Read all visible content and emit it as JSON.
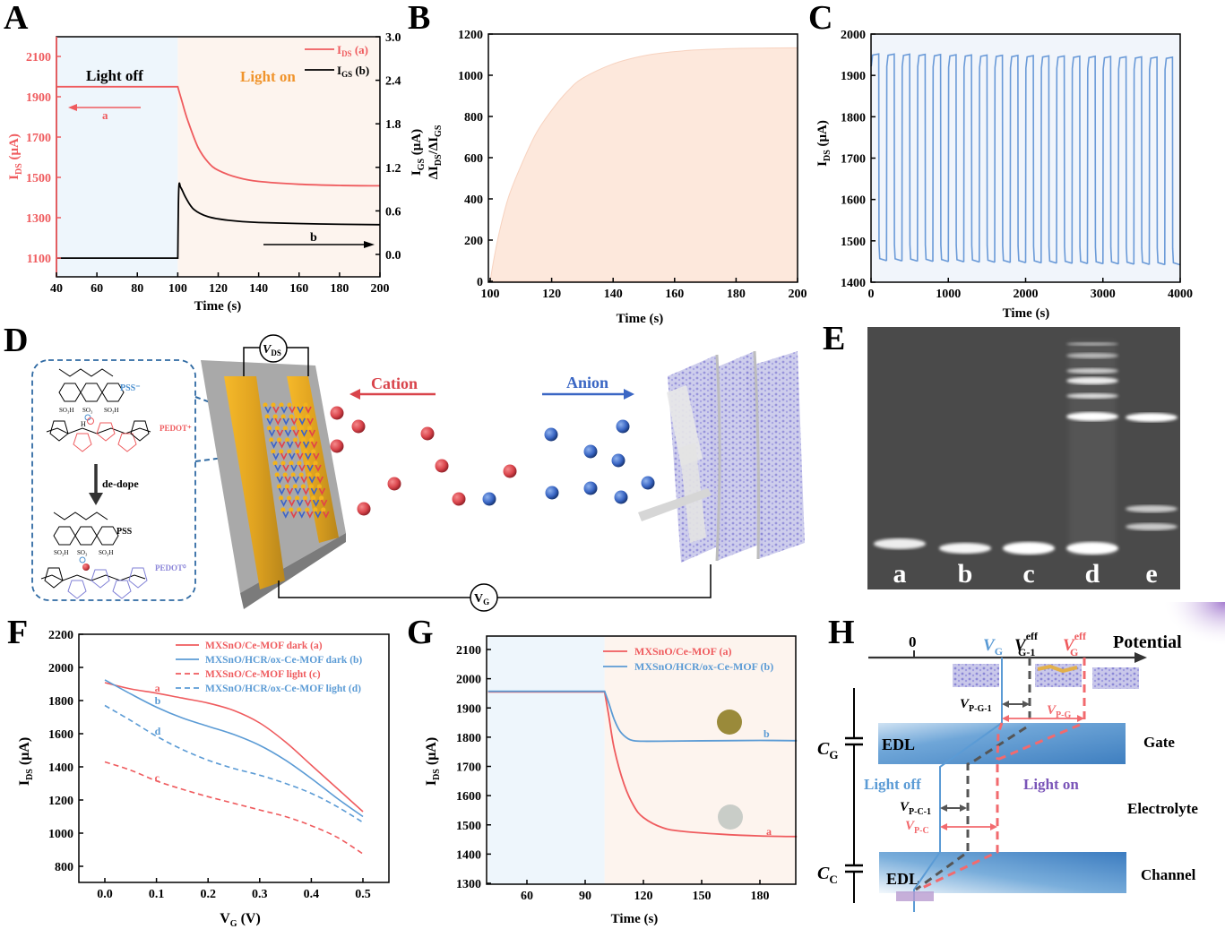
{
  "panels": {
    "A": {
      "letter": "A"
    },
    "B": {
      "letter": "B"
    },
    "C": {
      "letter": "C"
    },
    "D": {
      "letter": "D"
    },
    "E": {
      "letter": "E"
    },
    "F": {
      "letter": "F"
    },
    "G": {
      "letter": "G"
    },
    "H": {
      "letter": "H"
    }
  },
  "chart_data": [
    {
      "id": "A",
      "type": "line",
      "title": "",
      "xlabel": "Time (s)",
      "ylabel_left": "IDS (μA)",
      "ylabel_right": "IGS (μA)",
      "xlim": [
        40,
        200
      ],
      "ylim_left": [
        1000,
        2200
      ],
      "ylim_right": [
        -0.3,
        3.0
      ],
      "xticks": [
        "40",
        "60",
        "80",
        "100",
        "120",
        "140",
        "160",
        "180",
        "200"
      ],
      "yticks_left": [
        "1100",
        "1300",
        "1500",
        "1700",
        "1900",
        "2100"
      ],
      "yticks_right": [
        "0.0",
        "0.6",
        "1.2",
        "1.8",
        "2.4",
        "3.0"
      ],
      "regions": [
        {
          "label": "Light off",
          "from": 40,
          "to": 100,
          "color": "#eef6fc"
        },
        {
          "label": "Light on",
          "from": 100,
          "to": 200,
          "color": "#fdf4ee"
        }
      ],
      "series": [
        {
          "name": "IDS (a)",
          "axis": "left",
          "color": "#ef5b5e",
          "x": [
            40,
            100,
            102,
            105,
            110,
            115,
            120,
            130,
            140,
            160,
            180,
            200
          ],
          "y": [
            1950,
            1950,
            1880,
            1780,
            1650,
            1575,
            1535,
            1498,
            1480,
            1466,
            1460,
            1458
          ]
        },
        {
          "name": "IGS (b)",
          "axis": "right",
          "color": "#000000",
          "x": [
            40,
            100,
            100.5,
            101.5,
            104,
            108,
            115,
            125,
            140,
            170,
            200
          ],
          "y": [
            -0.05,
            -0.05,
            0.9,
            0.92,
            0.78,
            0.62,
            0.52,
            0.47,
            0.44,
            0.42,
            0.41
          ]
        }
      ],
      "annotations": [
        {
          "text": "a",
          "arrow": "left",
          "color": "#ef5b5e"
        },
        {
          "text": "b",
          "arrow": "right",
          "color": "#000000"
        }
      ],
      "legend": "top-right"
    },
    {
      "id": "B",
      "type": "area",
      "title": "",
      "xlabel": "Time (s)",
      "ylabel": "ΔIDS/ΔIGS",
      "xlim": [
        100,
        200
      ],
      "ylim": [
        0,
        1200
      ],
      "xticks": [
        "100",
        "120",
        "140",
        "160",
        "180",
        "200"
      ],
      "yticks": [
        "0",
        "200",
        "400",
        "600",
        "800",
        "1000",
        "1200"
      ],
      "series": [
        {
          "name": "ΔIDS/ΔIGS",
          "color": "#fde8dc",
          "x": [
            100,
            101,
            103,
            106,
            110,
            115,
            120,
            125,
            130,
            140,
            150,
            160,
            170,
            180,
            190,
            200
          ],
          "y": [
            0,
            90,
            240,
            410,
            560,
            720,
            830,
            920,
            985,
            1055,
            1095,
            1115,
            1125,
            1130,
            1132,
            1133
          ]
        }
      ]
    },
    {
      "id": "C",
      "type": "line",
      "title": "",
      "xlabel": "Time (s)",
      "ylabel": "IDS (μA)",
      "xlim": [
        0,
        4000
      ],
      "ylim": [
        1400,
        2000
      ],
      "xticks": [
        "0",
        "1000",
        "2000",
        "3000",
        "4000"
      ],
      "yticks": [
        "1400",
        "1500",
        "1600",
        "1700",
        "1800",
        "1900",
        "2000"
      ],
      "series": [
        {
          "name": "IDS",
          "color": "#6a9ad8",
          "cycles": 20,
          "period_s": 200,
          "high_start": 1952,
          "high_end": 1944,
          "low_start": 1452,
          "low_end": 1442
        }
      ]
    },
    {
      "id": "F",
      "type": "line",
      "title": "",
      "xlabel": "VG (V)",
      "ylabel": "IDS (μA)",
      "xlim": [
        -0.05,
        0.55
      ],
      "ylim": [
        700,
        2200
      ],
      "xticks": [
        "0.0",
        "0.1",
        "0.2",
        "0.3",
        "0.4",
        "0.5"
      ],
      "yticks": [
        "800",
        "1000",
        "1200",
        "1400",
        "1600",
        "1800",
        "2000",
        "2200"
      ],
      "legend": "top-right",
      "series": [
        {
          "name": "MXSnO/Ce-MOF dark (a)",
          "tag": "a",
          "color": "#ef5b5e",
          "dash": false,
          "x": [
            0.0,
            0.05,
            0.1,
            0.15,
            0.2,
            0.25,
            0.3,
            0.35,
            0.4,
            0.45,
            0.5
          ],
          "y": [
            1908,
            1870,
            1845,
            1815,
            1785,
            1740,
            1665,
            1550,
            1410,
            1270,
            1130
          ]
        },
        {
          "name": "MXSnO/HCR/ox-Ce-MOF  dark (b)",
          "tag": "b",
          "color": "#5b9bd5",
          "dash": false,
          "x": [
            0.0,
            0.05,
            0.1,
            0.15,
            0.2,
            0.25,
            0.3,
            0.35,
            0.4,
            0.45,
            0.5
          ],
          "y": [
            1925,
            1840,
            1760,
            1695,
            1645,
            1595,
            1530,
            1440,
            1330,
            1210,
            1100
          ]
        },
        {
          "name": "MXSnO/Ce-MOF light  (c)",
          "tag": "c",
          "color": "#ef5b5e",
          "dash": true,
          "x": [
            0.0,
            0.05,
            0.1,
            0.15,
            0.2,
            0.25,
            0.3,
            0.35,
            0.4,
            0.45,
            0.5
          ],
          "y": [
            1430,
            1380,
            1315,
            1265,
            1220,
            1180,
            1140,
            1100,
            1045,
            975,
            875
          ]
        },
        {
          "name": "MXSnO/HCR/ox-Ce-MOF  light (d)",
          "tag": "d",
          "color": "#5b9bd5",
          "dash": true,
          "x": [
            0.0,
            0.05,
            0.1,
            0.15,
            0.2,
            0.25,
            0.3,
            0.35,
            0.4,
            0.45,
            0.5
          ],
          "y": [
            1770,
            1680,
            1585,
            1505,
            1440,
            1390,
            1350,
            1300,
            1240,
            1160,
            1065
          ]
        }
      ]
    },
    {
      "id": "G",
      "type": "line",
      "title": "",
      "xlabel": "Time (s)",
      "ylabel": "IDS (μA)",
      "xlim": [
        40,
        199
      ],
      "ylim": [
        1300,
        2150
      ],
      "xticks": [
        "60",
        "90",
        "120",
        "150",
        "180"
      ],
      "yticks": [
        "1300",
        "1400",
        "1500",
        "1600",
        "1700",
        "1800",
        "1900",
        "2000",
        "2100"
      ],
      "legend": "top-right",
      "regions": [
        {
          "from": 40,
          "to": 100,
          "color": "#eef6fc"
        },
        {
          "from": 100,
          "to": 199,
          "color": "#fdf4ee"
        }
      ],
      "series": [
        {
          "name": "MXSnO/Ce-MOF (a)",
          "tag": "a",
          "color": "#ef5b5e",
          "x": [
            40,
            100,
            102,
            105,
            110,
            115,
            120,
            130,
            140,
            160,
            180,
            199
          ],
          "y": [
            1955,
            1955,
            1880,
            1760,
            1640,
            1565,
            1525,
            1490,
            1478,
            1468,
            1462,
            1460
          ]
        },
        {
          "name": "MXSnO/HCR/ox-Ce-MOF (b)",
          "tag": "b",
          "color": "#5b9bd5",
          "x": [
            40,
            100,
            102,
            105,
            108,
            112,
            115,
            120,
            140,
            160,
            180,
            199
          ],
          "y": [
            1957,
            1957,
            1920,
            1860,
            1820,
            1795,
            1788,
            1786,
            1787,
            1788,
            1789,
            1788
          ]
        }
      ],
      "insets": [
        {
          "kind": "sample-disc",
          "color": "#9a8a3a",
          "near": "b"
        },
        {
          "kind": "sample-disc",
          "color": "#c9cdc8",
          "near": "a"
        }
      ]
    }
  ],
  "panelA_text": {
    "light_off": "Light off",
    "light_on": "Light on",
    "legend_a": "IDS (a)",
    "legend_b": "IGS (b)",
    "arrow_a": "a",
    "arrow_b": "b"
  },
  "panelD": {
    "pss_minus": "PSS⁻",
    "pedot_plus": "PEDOT⁺",
    "dedope": "de-dope",
    "pss": "PSS",
    "pedot_zero": "PEDOT⁰",
    "vds": "V",
    "vds_sub": "DS",
    "vg": "V",
    "vg_sub": "G",
    "cation": "Cation",
    "anion": "Anion",
    "so3h": "SO₃H",
    "so3": "SO₃",
    "cation_color": "#d9444b",
    "anion_color": "#3a66c4"
  },
  "panelE": {
    "lanes": [
      "a",
      "b",
      "c",
      "d",
      "e"
    ]
  },
  "panelH": {
    "zero": "0",
    "vg": "V",
    "vg_sub": "G",
    "vg1": "V",
    "vg1_sup": "eff",
    "vg1_sub": "G-1",
    "vgeff": "V",
    "vgeff_sup": "eff",
    "vgeff_sub": "G",
    "potential": "Potential",
    "vpg1": "V",
    "vpg1_sub": "P-G-1",
    "vpg": "V",
    "vpg_sub": "P-G",
    "cg": "C",
    "cg_sub": "G",
    "cc": "C",
    "cc_sub": "C",
    "edl_top": "EDL",
    "edl_bottom": "EDL",
    "gate": "Gate",
    "electrolyte": "Electrolyte",
    "channel": "Channel",
    "light_off": "Light off",
    "light_on": "Light on",
    "vpc1": "V",
    "vpc1_sub": "P-C-1",
    "vpc": "V",
    "vpc_sub": "P-C"
  }
}
